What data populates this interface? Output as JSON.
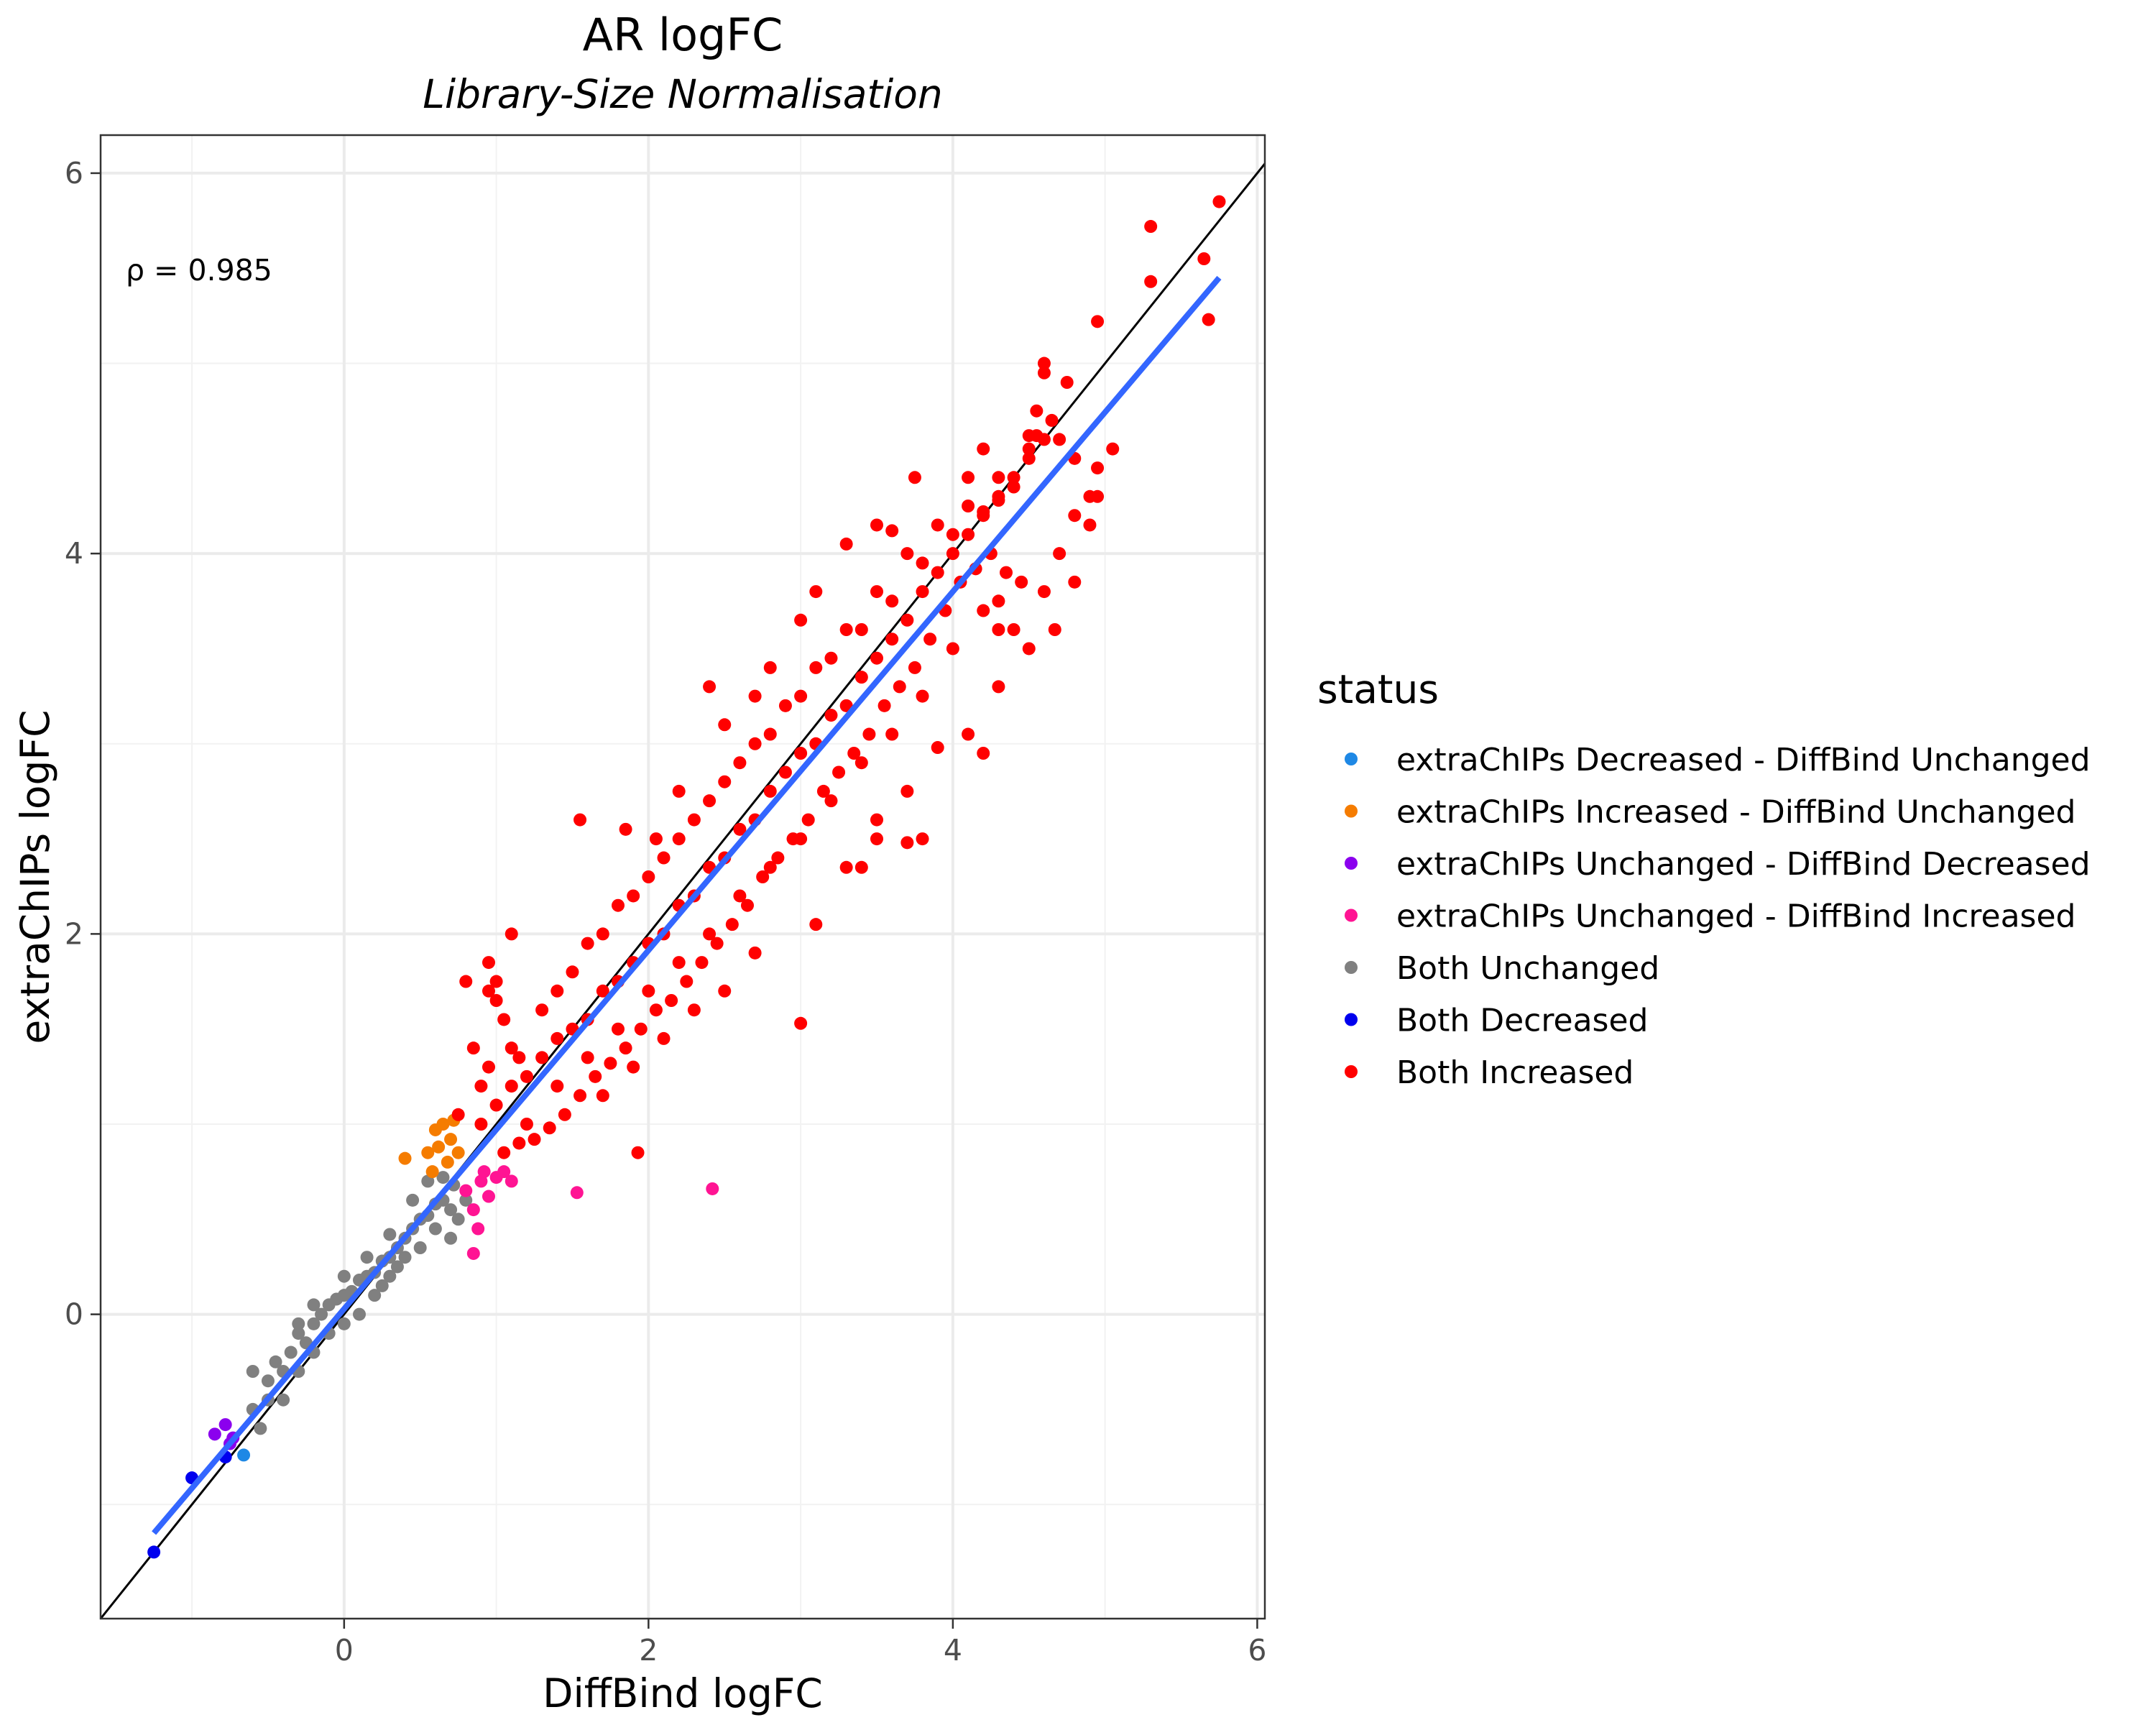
{
  "chart_data": {
    "type": "scatter",
    "title": "AR logFC",
    "subtitle": "Library-Size Normalisation",
    "xlabel": "DiffBind logFC",
    "ylabel": "extraChIPs logFC",
    "xlim": [
      -1.6,
      6.05
    ],
    "ylim": [
      -1.6,
      6.2
    ],
    "x_ticks": [
      0,
      2,
      4,
      6
    ],
    "y_ticks": [
      0,
      2,
      4,
      6
    ],
    "x_tick_labels": [
      "0",
      "2",
      "4",
      "6"
    ],
    "y_tick_labels": [
      "0",
      "2",
      "4",
      "6"
    ],
    "grid": true,
    "annotation": "ρ = 0.985",
    "identity_line": {
      "slope": 1,
      "intercept": 0,
      "color": "#000000"
    },
    "fit_line": {
      "x": [
        -1.25,
        5.75
      ],
      "y": [
        -1.15,
        5.45
      ],
      "color": "#3366FF"
    },
    "legend": {
      "title": "status",
      "position": "right",
      "entries": [
        {
          "label": "extraChIPs Decreased - DiffBind Unchanged",
          "color": "#1E88E5"
        },
        {
          "label": "extraChIPs Increased - DiffBind Unchanged",
          "color": "#F57C00"
        },
        {
          "label": "extraChIPs Unchanged - DiffBind Decreased",
          "color": "#8B00EE"
        },
        {
          "label": "extraChIPs Unchanged - DiffBind Increased",
          "color": "#FF1493"
        },
        {
          "label": "Both Unchanged",
          "color": "#808080"
        },
        {
          "label": "Both Decreased",
          "color": "#0000EE"
        },
        {
          "label": "Both Increased",
          "color": "#FF0000"
        }
      ]
    },
    "series": [
      {
        "name": "Both Unchanged",
        "color": "#808080",
        "points": [
          [
            -0.6,
            -0.5
          ],
          [
            -0.5,
            -0.35
          ],
          [
            -0.45,
            -0.25
          ],
          [
            -0.4,
            -0.3
          ],
          [
            -0.35,
            -0.2
          ],
          [
            -0.3,
            -0.1
          ],
          [
            -0.25,
            -0.15
          ],
          [
            -0.2,
            -0.05
          ],
          [
            -0.15,
            0.0
          ],
          [
            -0.1,
            0.05
          ],
          [
            -0.05,
            0.08
          ],
          [
            0.0,
            0.1
          ],
          [
            0.05,
            0.12
          ],
          [
            0.1,
            0.18
          ],
          [
            0.15,
            0.2
          ],
          [
            0.2,
            0.22
          ],
          [
            0.25,
            0.28
          ],
          [
            0.3,
            0.3
          ],
          [
            0.35,
            0.35
          ],
          [
            0.4,
            0.4
          ],
          [
            0.45,
            0.45
          ],
          [
            0.5,
            0.5
          ],
          [
            0.55,
            0.52
          ],
          [
            0.6,
            0.58
          ],
          [
            0.65,
            0.6
          ],
          [
            0.7,
            0.55
          ],
          [
            0.72,
            0.68
          ],
          [
            0.75,
            0.5
          ],
          [
            0.3,
            0.2
          ],
          [
            0.4,
            0.3
          ],
          [
            0.2,
            0.1
          ],
          [
            0.1,
            0.0
          ],
          [
            0.0,
            -0.05
          ],
          [
            -0.1,
            -0.1
          ],
          [
            -0.2,
            -0.2
          ],
          [
            -0.3,
            -0.3
          ],
          [
            -0.4,
            -0.45
          ],
          [
            -0.5,
            -0.45
          ],
          [
            -0.3,
            -0.05
          ],
          [
            -0.2,
            0.05
          ],
          [
            0.0,
            0.2
          ],
          [
            0.15,
            0.3
          ],
          [
            0.3,
            0.42
          ],
          [
            0.45,
            0.6
          ],
          [
            0.55,
            0.7
          ],
          [
            0.6,
            0.45
          ],
          [
            0.5,
            0.35
          ],
          [
            0.35,
            0.25
          ],
          [
            0.25,
            0.15
          ],
          [
            -0.55,
            -0.6
          ],
          [
            -0.6,
            -0.3
          ],
          [
            0.65,
            0.72
          ],
          [
            0.7,
            0.4
          ],
          [
            0.8,
            0.6
          ]
        ]
      },
      {
        "name": "extraChIPs Unchanged - DiffBind Decreased",
        "color": "#8B00EE",
        "points": [
          [
            -0.85,
            -0.63
          ],
          [
            -0.78,
            -0.58
          ],
          [
            -0.75,
            -0.68
          ],
          [
            -0.73,
            -0.65
          ]
        ]
      },
      {
        "name": "extraChIPs Decreased - DiffBind Unchanged",
        "color": "#1E88E5",
        "points": [
          [
            -0.66,
            -0.74
          ]
        ]
      },
      {
        "name": "Both Decreased",
        "color": "#0000EE",
        "points": [
          [
            -1.25,
            -1.25
          ],
          [
            -1.0,
            -0.86
          ],
          [
            -0.78,
            -0.75
          ]
        ]
      },
      {
        "name": "extraChIPs Increased - DiffBind Unchanged",
        "color": "#F57C00",
        "points": [
          [
            0.4,
            0.82
          ],
          [
            0.55,
            0.85
          ],
          [
            0.6,
            0.97
          ],
          [
            0.65,
            1.0
          ],
          [
            0.7,
            0.92
          ],
          [
            0.62,
            0.88
          ],
          [
            0.72,
            1.02
          ],
          [
            0.68,
            0.8
          ],
          [
            0.58,
            0.75
          ],
          [
            0.75,
            0.85
          ]
        ]
      },
      {
        "name": "extraChIPs Unchanged - DiffBind Increased",
        "color": "#FF1493",
        "points": [
          [
            0.8,
            0.65
          ],
          [
            0.85,
            0.55
          ],
          [
            0.9,
            0.7
          ],
          [
            0.95,
            0.62
          ],
          [
            1.0,
            0.72
          ],
          [
            1.05,
            0.75
          ],
          [
            1.1,
            0.7
          ],
          [
            0.88,
            0.45
          ],
          [
            0.92,
            0.75
          ],
          [
            0.85,
            0.32
          ],
          [
            1.53,
            0.64
          ],
          [
            2.42,
            0.66
          ]
        ]
      },
      {
        "name": "Both Increased",
        "color": "#FF0000",
        "points": [
          [
            0.9,
            1.0
          ],
          [
            1.0,
            1.1
          ],
          [
            1.1,
            1.2
          ],
          [
            1.2,
            1.25
          ],
          [
            1.3,
            1.35
          ],
          [
            1.4,
            1.45
          ],
          [
            1.5,
            1.5
          ],
          [
            1.6,
            1.55
          ],
          [
            1.7,
            1.7
          ],
          [
            1.8,
            1.75
          ],
          [
            1.9,
            1.85
          ],
          [
            2.0,
            1.95
          ],
          [
            2.1,
            2.0
          ],
          [
            2.2,
            2.15
          ],
          [
            2.3,
            2.2
          ],
          [
            2.4,
            2.35
          ],
          [
            2.5,
            2.4
          ],
          [
            2.6,
            2.55
          ],
          [
            2.7,
            2.6
          ],
          [
            2.8,
            2.75
          ],
          [
            2.9,
            2.85
          ],
          [
            3.0,
            2.95
          ],
          [
            3.1,
            3.0
          ],
          [
            3.2,
            3.15
          ],
          [
            3.3,
            3.2
          ],
          [
            3.4,
            3.35
          ],
          [
            3.5,
            3.45
          ],
          [
            3.6,
            3.55
          ],
          [
            3.7,
            3.65
          ],
          [
            3.8,
            3.8
          ],
          [
            3.9,
            3.9
          ],
          [
            4.0,
            4.0
          ],
          [
            4.1,
            4.1
          ],
          [
            4.2,
            4.2
          ],
          [
            4.3,
            4.3
          ],
          [
            4.4,
            4.4
          ],
          [
            4.5,
            4.5
          ],
          [
            4.6,
            4.6
          ],
          [
            1.1,
            1.4
          ],
          [
            1.3,
            1.6
          ],
          [
            1.5,
            1.8
          ],
          [
            1.7,
            2.0
          ],
          [
            1.9,
            2.2
          ],
          [
            2.1,
            2.4
          ],
          [
            2.3,
            2.6
          ],
          [
            2.5,
            2.8
          ],
          [
            2.7,
            3.0
          ],
          [
            2.9,
            3.2
          ],
          [
            3.1,
            3.4
          ],
          [
            3.3,
            3.6
          ],
          [
            3.5,
            3.8
          ],
          [
            3.7,
            4.0
          ],
          [
            3.9,
            4.15
          ],
          [
            1.2,
            1.0
          ],
          [
            1.4,
            1.2
          ],
          [
            1.6,
            1.35
          ],
          [
            1.8,
            1.5
          ],
          [
            2.0,
            1.7
          ],
          [
            2.2,
            1.85
          ],
          [
            2.4,
            2.0
          ],
          [
            2.6,
            2.2
          ],
          [
            2.8,
            2.35
          ],
          [
            3.0,
            2.5
          ],
          [
            3.2,
            2.7
          ],
          [
            3.4,
            2.9
          ],
          [
            3.6,
            3.05
          ],
          [
            3.8,
            3.25
          ],
          [
            4.0,
            3.5
          ],
          [
            4.2,
            3.7
          ],
          [
            0.95,
            1.3
          ],
          [
            1.05,
            1.55
          ],
          [
            1.0,
            1.75
          ],
          [
            1.1,
            2.0
          ],
          [
            0.95,
            1.7
          ],
          [
            0.85,
            1.4
          ],
          [
            0.8,
            1.75
          ],
          [
            0.95,
            1.85
          ],
          [
            1.55,
            2.6
          ],
          [
            1.85,
            2.55
          ],
          [
            2.05,
            2.5
          ],
          [
            2.2,
            2.75
          ],
          [
            2.4,
            3.3
          ],
          [
            2.5,
            3.1
          ],
          [
            2.7,
            3.25
          ],
          [
            2.8,
            3.4
          ],
          [
            3.0,
            3.65
          ],
          [
            3.1,
            3.8
          ],
          [
            3.3,
            4.05
          ],
          [
            3.5,
            4.15
          ],
          [
            1.7,
            1.15
          ],
          [
            1.9,
            1.3
          ],
          [
            2.1,
            1.45
          ],
          [
            2.3,
            1.6
          ],
          [
            2.5,
            1.7
          ],
          [
            2.7,
            1.9
          ],
          [
            3.0,
            1.53
          ],
          [
            3.1,
            2.05
          ],
          [
            3.3,
            2.35
          ],
          [
            3.5,
            2.5
          ],
          [
            3.7,
            2.75
          ],
          [
            3.9,
            2.98
          ],
          [
            4.1,
            3.05
          ],
          [
            4.3,
            3.3
          ],
          [
            4.4,
            3.6
          ],
          [
            4.5,
            3.5
          ],
          [
            4.6,
            3.8
          ],
          [
            4.7,
            4.0
          ],
          [
            4.8,
            4.2
          ],
          [
            4.9,
            4.3
          ],
          [
            4.95,
            4.45
          ],
          [
            4.7,
            4.6
          ],
          [
            4.8,
            4.5
          ],
          [
            4.65,
            4.7
          ],
          [
            4.55,
            4.62
          ],
          [
            4.5,
            4.55
          ],
          [
            4.4,
            4.35
          ],
          [
            4.3,
            4.28
          ],
          [
            4.2,
            4.22
          ],
          [
            4.25,
            4.0
          ],
          [
            4.35,
            3.9
          ],
          [
            4.45,
            3.85
          ],
          [
            4.3,
            3.6
          ],
          [
            4.15,
            3.92
          ],
          [
            4.05,
            3.85
          ],
          [
            3.95,
            3.7
          ],
          [
            3.85,
            3.55
          ],
          [
            3.75,
            3.4
          ],
          [
            3.65,
            3.3
          ],
          [
            3.55,
            3.2
          ],
          [
            3.45,
            3.05
          ],
          [
            3.35,
            2.95
          ],
          [
            3.25,
            2.85
          ],
          [
            3.15,
            2.75
          ],
          [
            3.05,
            2.6
          ],
          [
            2.95,
            2.5
          ],
          [
            2.85,
            2.4
          ],
          [
            2.75,
            2.3
          ],
          [
            2.65,
            2.15
          ],
          [
            2.55,
            2.05
          ],
          [
            2.45,
            1.95
          ],
          [
            2.35,
            1.85
          ],
          [
            2.25,
            1.75
          ],
          [
            2.15,
            1.65
          ],
          [
            2.05,
            1.6
          ],
          [
            1.95,
            1.5
          ],
          [
            1.85,
            1.4
          ],
          [
            1.75,
            1.32
          ],
          [
            1.65,
            1.25
          ],
          [
            1.55,
            1.15
          ],
          [
            1.45,
            1.05
          ],
          [
            1.35,
            0.98
          ],
          [
            1.25,
            0.92
          ],
          [
            1.15,
            0.9
          ],
          [
            1.05,
            0.85
          ],
          [
            1.93,
            0.85
          ],
          [
            1.4,
            1.7
          ],
          [
            1.6,
            1.95
          ],
          [
            1.8,
            2.15
          ],
          [
            2.0,
            2.3
          ],
          [
            2.2,
            2.5
          ],
          [
            2.4,
            2.7
          ],
          [
            2.6,
            2.9
          ],
          [
            2.8,
            3.05
          ],
          [
            3.0,
            3.25
          ],
          [
            3.2,
            3.45
          ],
          [
            3.4,
            3.6
          ],
          [
            3.6,
            3.75
          ],
          [
            3.8,
            3.95
          ],
          [
            4.0,
            4.1
          ],
          [
            4.1,
            4.25
          ],
          [
            4.3,
            4.4
          ],
          [
            4.5,
            4.62
          ],
          [
            3.6,
            4.12
          ],
          [
            3.75,
            4.4
          ],
          [
            4.1,
            4.4
          ],
          [
            4.2,
            4.55
          ],
          [
            4.55,
            4.75
          ],
          [
            4.6,
            4.95
          ],
          [
            4.6,
            5.0
          ],
          [
            4.75,
            4.9
          ],
          [
            4.9,
            4.15
          ],
          [
            4.95,
            4.3
          ],
          [
            5.05,
            4.55
          ],
          [
            4.8,
            3.85
          ],
          [
            4.67,
            3.6
          ],
          [
            4.95,
            5.22
          ],
          [
            5.3,
            5.72
          ],
          [
            5.3,
            5.43
          ],
          [
            5.65,
            5.55
          ],
          [
            5.68,
            5.23
          ],
          [
            5.75,
            5.85
          ],
          [
            4.3,
            3.75
          ],
          [
            3.4,
            2.35
          ],
          [
            3.5,
            2.6
          ],
          [
            3.7,
            2.48
          ],
          [
            3.8,
            2.5
          ],
          [
            4.2,
            2.95
          ],
          [
            1.0,
            1.65
          ],
          [
            0.9,
            1.2
          ],
          [
            1.15,
            1.35
          ],
          [
            0.75,
            1.05
          ]
        ]
      }
    ]
  }
}
